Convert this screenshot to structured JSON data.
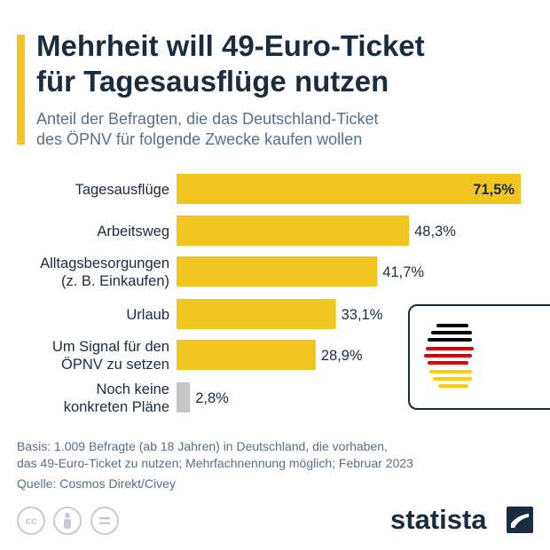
{
  "header": {
    "title_line1": "Mehrheit will 49-Euro-Ticket",
    "title_line2": "für Tagesausflüge nutzen",
    "subtitle_line1": "Anteil der Befragten, die das Deutschland-Ticket",
    "subtitle_line2": "des ÖPNV für folgende Zwecke kaufen wollen"
  },
  "chart_data": {
    "type": "bar",
    "orientation": "horizontal",
    "categories": [
      [
        "Tagesausflüge"
      ],
      [
        "Arbeitsweg"
      ],
      [
        "Alltagsbesorgungen",
        "(z. B. Einkaufen)"
      ],
      [
        "Urlaub"
      ],
      [
        "Um Signal für den",
        "ÖPNV zu setzen"
      ],
      [
        "Noch keine",
        "konkreten Pläne"
      ]
    ],
    "values": [
      71.5,
      48.3,
      41.7,
      33.1,
      28.9,
      2.8
    ],
    "value_labels": [
      "71,5%",
      "48,3%",
      "41,7%",
      "33,1%",
      "28,9%",
      "2,8%"
    ],
    "unit": "%",
    "xlim": [
      0,
      71.5
    ],
    "grid": false,
    "colors": {
      "bar": "#f0c51f",
      "bar_muted": "#c8c8c8",
      "label": "#1b2c3e"
    }
  },
  "footer": {
    "note_line1": "Basis: 1.009 Befragte (ab 18 Jahren) in Deutschland, die vorhaben,",
    "note_line2": "das 49-Euro-Ticket zu nutzen; Mehrfachnennung möglich; Februar 2023",
    "source": "Quelle: Cosmos Direkt/Civey",
    "brand": "statista",
    "license_icons": [
      "cc-icon",
      "attribution-icon",
      "no-derivatives-icon"
    ]
  },
  "colors": {
    "title": "#1b2c3e",
    "subtitle": "#5a6f87",
    "accent": "#f0c51f"
  },
  "flag_colors": [
    "#000000",
    "#dd0000",
    "#ffce00"
  ]
}
